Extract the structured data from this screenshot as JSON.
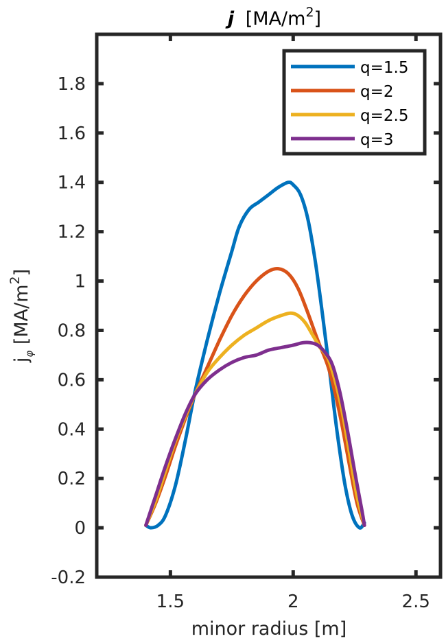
{
  "chart_data": {
    "type": "line",
    "title": "j [MA/m^2]",
    "title_parts": {
      "symbol": "j",
      "unit": "[MA/m",
      "sup": "2",
      "close": "]"
    },
    "xlabel": "minor radius [m]",
    "ylabel": "j_φ [MA/m^2]",
    "ylabel_parts": {
      "symbol": "j",
      "sub": "φ",
      "unit": " [MA/m",
      "sup": "2",
      "close": "]"
    },
    "xlim": [
      1.2,
      2.6
    ],
    "ylim": [
      -0.2,
      2.0
    ],
    "xticks": [
      1.5,
      2,
      2.5
    ],
    "xtick_labels": [
      "1.5",
      "2",
      "2.5"
    ],
    "yticks": [
      -0.2,
      0,
      0.2,
      0.4,
      0.6,
      0.8,
      1,
      1.2,
      1.4,
      1.6,
      1.8
    ],
    "ytick_labels": [
      "-0.2",
      "0",
      "0.2",
      "0.4",
      "0.6",
      "0.8",
      "1",
      "1.2",
      "1.4",
      "1.6",
      "1.8"
    ],
    "grid": false,
    "box": true,
    "legend_position": "upper right",
    "series": [
      {
        "name": "q=1.5",
        "color": "#0072BD",
        "x": [
          1.4,
          1.42,
          1.45,
          1.48,
          1.52,
          1.56,
          1.6,
          1.65,
          1.7,
          1.75,
          1.78,
          1.82,
          1.86,
          1.9,
          1.94,
          1.98,
          2.0,
          2.03,
          2.06,
          2.09,
          2.12,
          2.15,
          2.18,
          2.21,
          2.24,
          2.27,
          2.29
        ],
        "y": [
          0.01,
          0.0,
          0.01,
          0.05,
          0.17,
          0.35,
          0.55,
          0.76,
          0.95,
          1.12,
          1.22,
          1.29,
          1.32,
          1.35,
          1.38,
          1.4,
          1.39,
          1.35,
          1.25,
          1.08,
          0.86,
          0.62,
          0.38,
          0.18,
          0.05,
          0.0,
          0.02
        ]
      },
      {
        "name": "q=2",
        "color": "#D95319",
        "x": [
          1.4,
          1.44,
          1.48,
          1.52,
          1.56,
          1.6,
          1.65,
          1.7,
          1.75,
          1.8,
          1.85,
          1.9,
          1.94,
          1.98,
          2.02,
          2.06,
          2.1,
          2.14,
          2.17,
          2.2,
          2.23,
          2.26,
          2.29
        ],
        "y": [
          0.01,
          0.1,
          0.21,
          0.33,
          0.44,
          0.54,
          0.65,
          0.76,
          0.86,
          0.94,
          1.0,
          1.04,
          1.05,
          1.03,
          0.97,
          0.87,
          0.76,
          0.66,
          0.55,
          0.41,
          0.25,
          0.1,
          0.01
        ]
      },
      {
        "name": "q=2.5",
        "color": "#EDB120",
        "x": [
          1.4,
          1.44,
          1.48,
          1.52,
          1.56,
          1.6,
          1.65,
          1.7,
          1.75,
          1.8,
          1.85,
          1.9,
          1.95,
          1.99,
          2.02,
          2.05,
          2.08,
          2.11,
          2.14,
          2.17,
          2.2,
          2.23,
          2.26,
          2.29
        ],
        "y": [
          0.01,
          0.11,
          0.23,
          0.35,
          0.45,
          0.54,
          0.63,
          0.69,
          0.74,
          0.78,
          0.81,
          0.84,
          0.86,
          0.87,
          0.86,
          0.83,
          0.78,
          0.73,
          0.69,
          0.6,
          0.47,
          0.3,
          0.13,
          0.01
        ]
      },
      {
        "name": "q=3",
        "color": "#7E2F8E",
        "x": [
          1.4,
          1.44,
          1.48,
          1.52,
          1.56,
          1.6,
          1.65,
          1.7,
          1.75,
          1.8,
          1.85,
          1.9,
          1.95,
          2.0,
          2.04,
          2.07,
          2.1,
          2.13,
          2.16,
          2.19,
          2.22,
          2.25,
          2.28,
          2.29
        ],
        "y": [
          0.01,
          0.13,
          0.25,
          0.36,
          0.46,
          0.54,
          0.6,
          0.64,
          0.67,
          0.69,
          0.7,
          0.72,
          0.73,
          0.74,
          0.75,
          0.75,
          0.74,
          0.71,
          0.66,
          0.55,
          0.4,
          0.23,
          0.07,
          0.01
        ]
      }
    ]
  },
  "colors": {
    "axis": "#262626",
    "background": "#ffffff",
    "legend_border": "#262626"
  }
}
